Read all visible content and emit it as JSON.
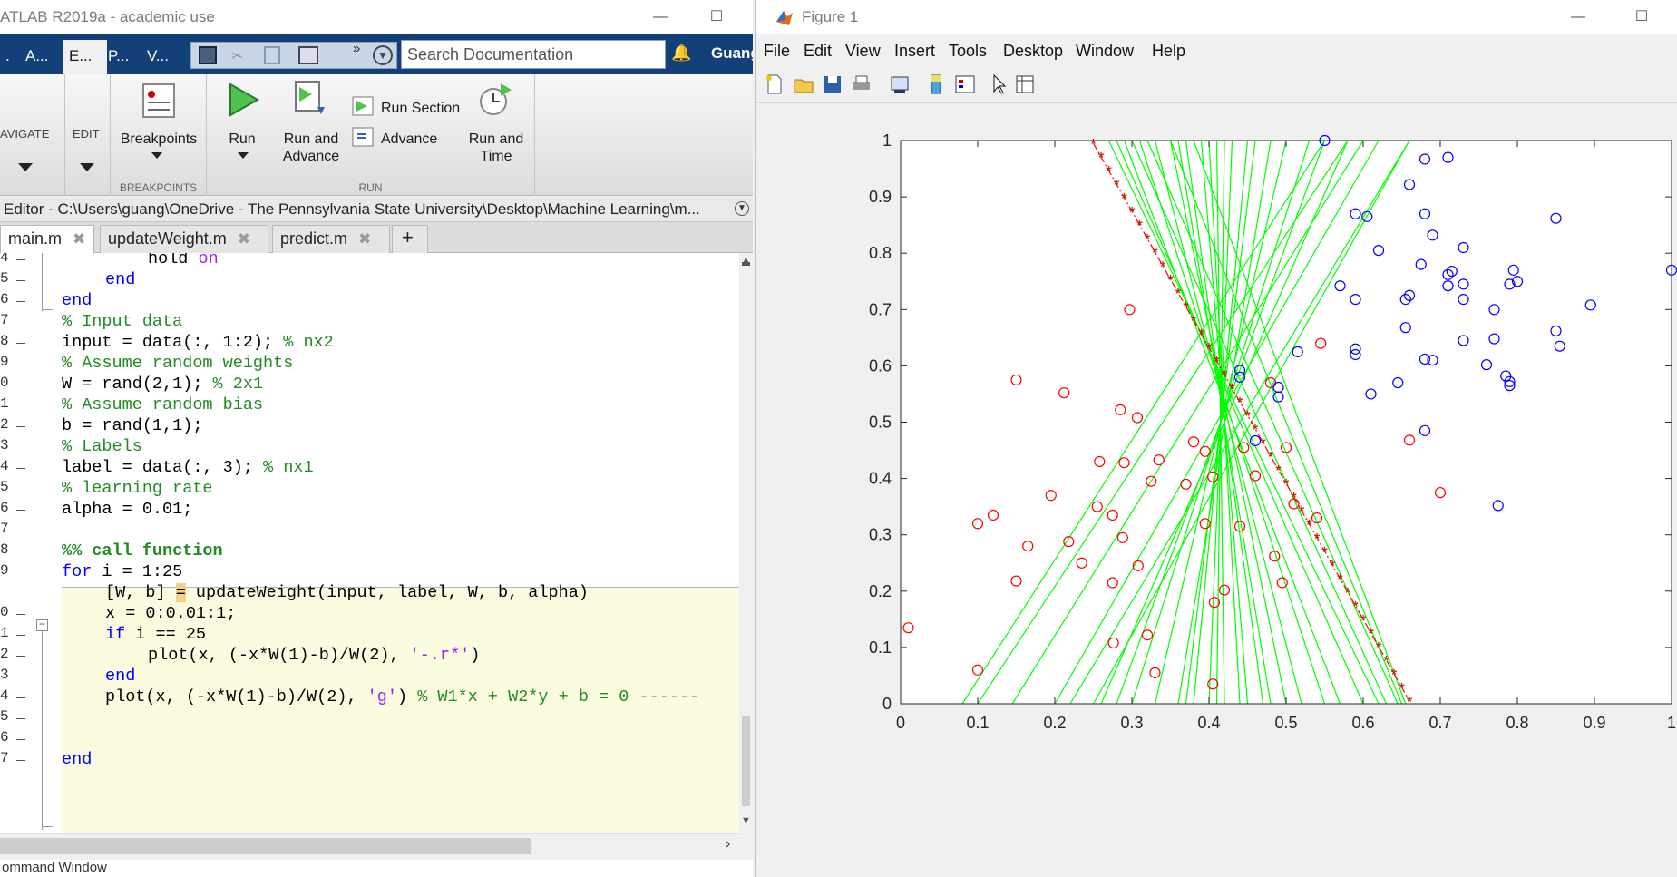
{
  "matlab": {
    "title": "ATLAB R2019a - academic use",
    "ribbon_tabs": [
      "A...",
      "E...",
      "P...",
      "V..."
    ],
    "search_placeholder": "Search Documentation",
    "user": "Guang",
    "ribbon": {
      "navigate_label": "AVIGATE",
      "edit_label": "EDIT",
      "breakpoints_label": "Breakpoints",
      "breakpoints_group": "BREAKPOINTS",
      "run_label": "Run",
      "run_and_advance_label": "Run and\nAdvance",
      "run_section_label": "Run Section",
      "advance_label": "Advance",
      "run_and_time_label": "Run and\nTime",
      "run_group": "RUN"
    },
    "editor_path": "Editor - C:\\Users\\guang\\OneDrive - The Pennsylvania State University\\Desktop\\Machine Learning\\m...",
    "file_tabs": [
      "main.m",
      "updateWeight.m",
      "predict.m"
    ],
    "new_tab_symbol": "+",
    "line_numbers": [
      "4",
      "5",
      "6",
      "7",
      "8",
      "9",
      "0",
      "1",
      "2",
      "3",
      "4",
      "5",
      "6",
      "7",
      "8",
      "9",
      "0",
      "1",
      "2",
      "3",
      "4",
      "5",
      "6",
      "7"
    ],
    "code": {
      "l_hold": "hold",
      "l_hold_on": "on",
      "l_end1": "end",
      "l_end2": "end",
      "l_c_input": "% Input data",
      "l_input": "input = data(:, 1:2); ",
      "l_input_c": "% nx2",
      "l_c_w": "% Assume random weights",
      "l_w": "W = rand(2,1); ",
      "l_w_c": "% 2x1",
      "l_c_b": "% Assume random bias",
      "l_b": "b = rand(1,1);",
      "l_c_labels": "% Labels",
      "l_label": "label = data(:, 3); ",
      "l_label_c": "% nx1",
      "l_c_lr": "% learning rate",
      "l_alpha": "alpha = 0.01;",
      "l_cell": "%% call function",
      "l_for_kw": "for",
      "l_for": " i = 1:25",
      "l_update_a": "[W, b] ",
      "l_update_eq": "=",
      "l_update_b": " updateWeight(input, label, W, b, alpha)",
      "l_x": "x = 0:0.01:1;",
      "l_if_kw": "if",
      "l_if": " i == 25",
      "l_plot1": "plot(x, (-x*W(1)-b)/W(2), ",
      "l_plot1_s": "'-.r*'",
      "l_plot1_e": ")",
      "l_end3": "end",
      "l_plot2": "plot(x, (-x*W(1)-b)/W(2), ",
      "l_plot2_s": "'g'",
      "l_plot2_e": ") ",
      "l_plot2_c": "% W1*x + W2*y + b = 0 ------",
      "l_end4": "end"
    },
    "command_window": "ommand Window"
  },
  "figure": {
    "title": "Figure 1",
    "menu": [
      "File",
      "Edit",
      "View",
      "Insert",
      "Tools",
      "Desktop",
      "Window",
      "Help"
    ],
    "icons": [
      "new-figure-icon",
      "open-file-icon",
      "save-icon",
      "print-icon",
      "link-plot-icon",
      "colorbar-icon",
      "legend-icon",
      "pointer-icon",
      "property-inspector-icon"
    ]
  },
  "chart_data": {
    "type": "scatter",
    "title": "",
    "xlabel": "",
    "ylabel": "",
    "xlim": [
      0,
      1
    ],
    "ylim": [
      0,
      1
    ],
    "xticks": [
      "0",
      "0.1",
      "0.2",
      "0.3",
      "0.4",
      "0.5",
      "0.6",
      "0.7",
      "0.8",
      "0.9",
      "1"
    ],
    "yticks": [
      "0",
      "0.1",
      "0.2",
      "0.3",
      "0.4",
      "0.5",
      "0.6",
      "0.7",
      "0.8",
      "0.9",
      "1"
    ],
    "grid": false,
    "colors": {
      "class0": "#ff0000",
      "class1": "#0000ff",
      "lines": "#00ff00",
      "final": "#ff0000",
      "final_marker": "#8b4513"
    },
    "series": [
      {
        "name": "",
        "marker": "o",
        "color": "#ff0000",
        "points": [
          [
            0.01,
            0.135
          ],
          [
            0.1,
            0.32
          ],
          [
            0.1,
            0.06
          ],
          [
            0.12,
            0.335
          ],
          [
            0.15,
            0.575
          ],
          [
            0.15,
            0.218
          ],
          [
            0.165,
            0.28
          ],
          [
            0.195,
            0.37
          ],
          [
            0.212,
            0.552
          ],
          [
            0.218,
            0.288
          ],
          [
            0.235,
            0.25
          ],
          [
            0.255,
            0.35
          ],
          [
            0.258,
            0.43
          ],
          [
            0.275,
            0.335
          ],
          [
            0.275,
            0.215
          ],
          [
            0.276,
            0.108
          ],
          [
            0.285,
            0.522
          ],
          [
            0.288,
            0.295
          ],
          [
            0.29,
            0.428
          ],
          [
            0.297,
            0.7
          ],
          [
            0.307,
            0.508
          ],
          [
            0.308,
            0.245
          ],
          [
            0.32,
            0.122
          ],
          [
            0.325,
            0.395
          ],
          [
            0.33,
            0.055
          ],
          [
            0.335,
            0.433
          ],
          [
            0.37,
            0.39
          ],
          [
            0.38,
            0.465
          ],
          [
            0.395,
            0.32
          ],
          [
            0.395,
            0.448
          ],
          [
            0.405,
            0.403
          ],
          [
            0.405,
            0.035
          ],
          [
            0.407,
            0.18
          ],
          [
            0.42,
            0.202
          ],
          [
            0.44,
            0.315
          ],
          [
            0.445,
            0.455
          ],
          [
            0.46,
            0.405
          ],
          [
            0.48,
            0.57
          ],
          [
            0.485,
            0.262
          ],
          [
            0.495,
            0.215
          ],
          [
            0.5,
            0.455
          ],
          [
            0.51,
            0.355
          ],
          [
            0.54,
            0.33
          ],
          [
            0.545,
            0.64
          ],
          [
            0.66,
            0.468
          ],
          [
            0.7,
            0.375
          ]
        ]
      },
      {
        "name": "",
        "marker": "o",
        "color": "#0000ff",
        "points": [
          [
            0.55,
            1.0
          ],
          [
            0.66,
            0.922
          ],
          [
            0.68,
            0.967
          ],
          [
            0.71,
            0.97
          ],
          [
            0.59,
            0.87
          ],
          [
            0.605,
            0.865
          ],
          [
            0.68,
            0.87
          ],
          [
            0.85,
            0.862
          ],
          [
            0.69,
            0.832
          ],
          [
            0.62,
            0.805
          ],
          [
            0.73,
            0.81
          ],
          [
            0.675,
            0.78
          ],
          [
            0.71,
            0.762
          ],
          [
            0.715,
            0.768
          ],
          [
            0.795,
            0.77
          ],
          [
            0.71,
            0.742
          ],
          [
            0.73,
            0.745
          ],
          [
            0.79,
            0.745
          ],
          [
            0.8,
            0.75
          ],
          [
            0.57,
            0.742
          ],
          [
            0.66,
            0.725
          ],
          [
            0.655,
            0.718
          ],
          [
            0.59,
            0.718
          ],
          [
            0.73,
            0.718
          ],
          [
            0.77,
            0.7
          ],
          [
            0.895,
            0.708
          ],
          [
            0.655,
            0.668
          ],
          [
            0.85,
            0.662
          ],
          [
            0.77,
            0.648
          ],
          [
            0.73,
            0.645
          ],
          [
            0.855,
            0.635
          ],
          [
            0.515,
            0.625
          ],
          [
            0.59,
            0.63
          ],
          [
            0.59,
            0.62
          ],
          [
            0.68,
            0.612
          ],
          [
            0.69,
            0.61
          ],
          [
            0.76,
            0.602
          ],
          [
            0.785,
            0.582
          ],
          [
            0.44,
            0.592
          ],
          [
            0.44,
            0.58
          ],
          [
            0.79,
            0.565
          ],
          [
            0.79,
            0.572
          ],
          [
            0.49,
            0.562
          ],
          [
            0.49,
            0.545
          ],
          [
            0.645,
            0.57
          ],
          [
            0.61,
            0.55
          ],
          [
            0.68,
            0.485
          ],
          [
            0.46,
            0.467
          ],
          [
            0.775,
            0.352
          ],
          [
            1.0,
            0.77
          ]
        ]
      }
    ],
    "boundary_lines": [
      [
        0.08,
        0,
        0.55,
        1
      ],
      [
        0.1,
        0,
        0.58,
        1
      ],
      [
        0.145,
        0,
        0.6,
        1
      ],
      [
        0.2,
        0,
        0.62,
        1
      ],
      [
        0.22,
        0,
        0.66,
        1
      ],
      [
        0.25,
        0,
        0.66,
        1
      ],
      [
        0.26,
        0,
        0.58,
        1
      ],
      [
        0.28,
        0,
        0.55,
        1
      ],
      [
        0.3,
        0,
        0.53,
        1
      ],
      [
        0.33,
        0,
        0.5,
        1
      ],
      [
        0.36,
        0,
        0.48,
        1
      ],
      [
        0.37,
        0,
        0.46,
        1
      ],
      [
        0.38,
        0,
        0.45,
        1
      ],
      [
        0.4,
        0,
        0.43,
        1
      ],
      [
        0.41,
        0,
        0.42,
        1
      ],
      [
        0.42,
        0,
        0.41,
        1
      ],
      [
        0.44,
        0,
        0.4,
        1
      ],
      [
        0.45,
        0,
        0.39,
        1
      ],
      [
        0.47,
        0,
        0.37,
        1
      ],
      [
        0.48,
        0,
        0.36,
        1
      ],
      [
        0.5,
        0,
        0.35,
        1
      ],
      [
        0.52,
        0,
        0.33,
        1
      ],
      [
        0.55,
        0,
        0.31,
        1
      ],
      [
        0.57,
        0,
        0.29,
        1
      ],
      [
        0.6,
        0,
        0.28,
        1
      ],
      [
        0.62,
        0,
        0.27,
        1
      ],
      [
        0.63,
        0,
        0.3,
        1
      ],
      [
        0.645,
        0,
        0.32,
        1
      ],
      [
        0.65,
        0,
        0.35,
        1
      ],
      [
        0.655,
        0,
        0.38,
        1
      ]
    ],
    "final_line": {
      "x0": 0.25,
      "y0": 0.995,
      "x1": 0.66,
      "y1": 0.005,
      "style": "-.r*"
    }
  }
}
